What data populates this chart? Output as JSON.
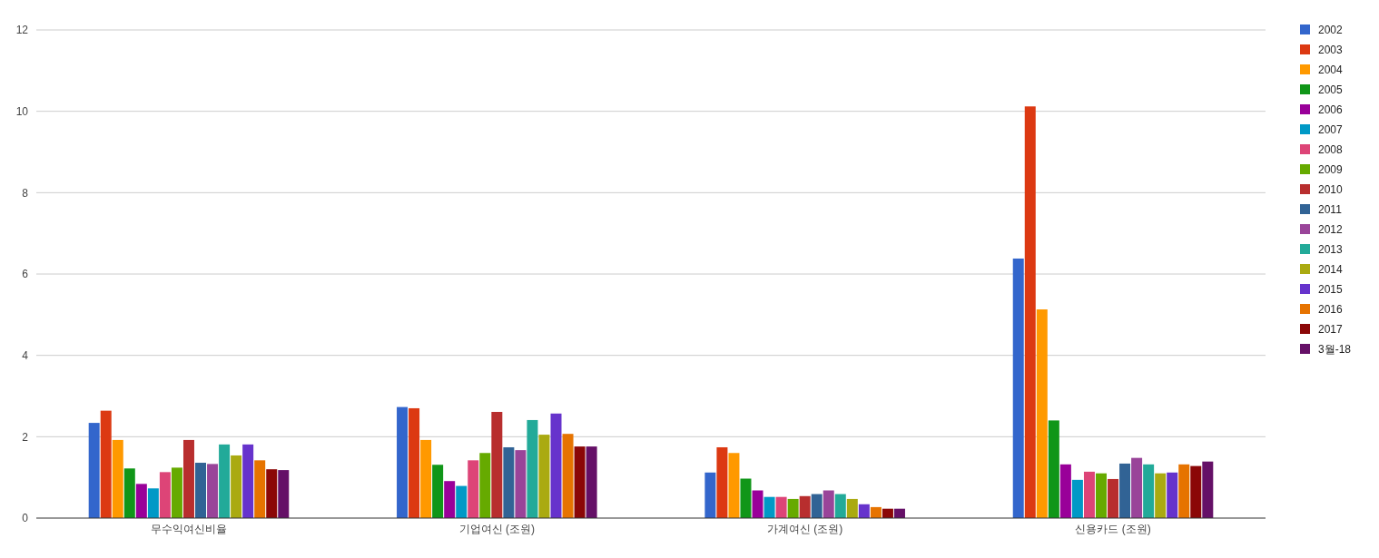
{
  "chart_data": {
    "type": "bar",
    "categories": [
      "무수익여신비율",
      "기업여신 (조원)",
      "가계여신 (조원)",
      "신용카드 (조원)"
    ],
    "series": [
      {
        "name": "2002",
        "color": "#3366cc",
        "values": [
          2.34,
          2.73,
          1.12,
          6.38
        ]
      },
      {
        "name": "2003",
        "color": "#dc3912",
        "values": [
          2.64,
          2.7,
          1.74,
          10.12
        ]
      },
      {
        "name": "2004",
        "color": "#ff9900",
        "values": [
          1.92,
          1.92,
          1.6,
          5.13
        ]
      },
      {
        "name": "2005",
        "color": "#109618",
        "values": [
          1.22,
          1.31,
          0.97,
          2.4
        ]
      },
      {
        "name": "2006",
        "color": "#990099",
        "values": [
          0.84,
          0.91,
          0.68,
          1.32
        ]
      },
      {
        "name": "2007",
        "color": "#0099c6",
        "values": [
          0.73,
          0.79,
          0.52,
          0.94
        ]
      },
      {
        "name": "2008",
        "color": "#dd4477",
        "values": [
          1.13,
          1.42,
          0.52,
          1.14
        ]
      },
      {
        "name": "2009",
        "color": "#66aa00",
        "values": [
          1.24,
          1.6,
          0.47,
          1.1
        ]
      },
      {
        "name": "2010",
        "color": "#b82e2e",
        "values": [
          1.92,
          2.61,
          0.54,
          0.96
        ]
      },
      {
        "name": "2011",
        "color": "#316395",
        "values": [
          1.36,
          1.74,
          0.59,
          1.34
        ]
      },
      {
        "name": "2012",
        "color": "#994499",
        "values": [
          1.33,
          1.67,
          0.68,
          1.48
        ]
      },
      {
        "name": "2013",
        "color": "#22aa99",
        "values": [
          1.81,
          2.41,
          0.59,
          1.32
        ]
      },
      {
        "name": "2014",
        "color": "#aaaa11",
        "values": [
          1.54,
          2.05,
          0.47,
          1.1
        ]
      },
      {
        "name": "2015",
        "color": "#6633cc",
        "values": [
          1.81,
          2.57,
          0.34,
          1.12
        ]
      },
      {
        "name": "2016",
        "color": "#e67300",
        "values": [
          1.42,
          2.07,
          0.27,
          1.32
        ]
      },
      {
        "name": "2017",
        "color": "#8b0707",
        "values": [
          1.2,
          1.76,
          0.23,
          1.28
        ]
      },
      {
        "name": "3월-18",
        "color": "#651067",
        "values": [
          1.18,
          1.76,
          0.23,
          1.39
        ]
      }
    ],
    "ylim": [
      0,
      12
    ],
    "yticks": [
      0,
      2,
      4,
      6,
      8,
      10,
      12
    ],
    "grid": "y",
    "legend": "right"
  }
}
